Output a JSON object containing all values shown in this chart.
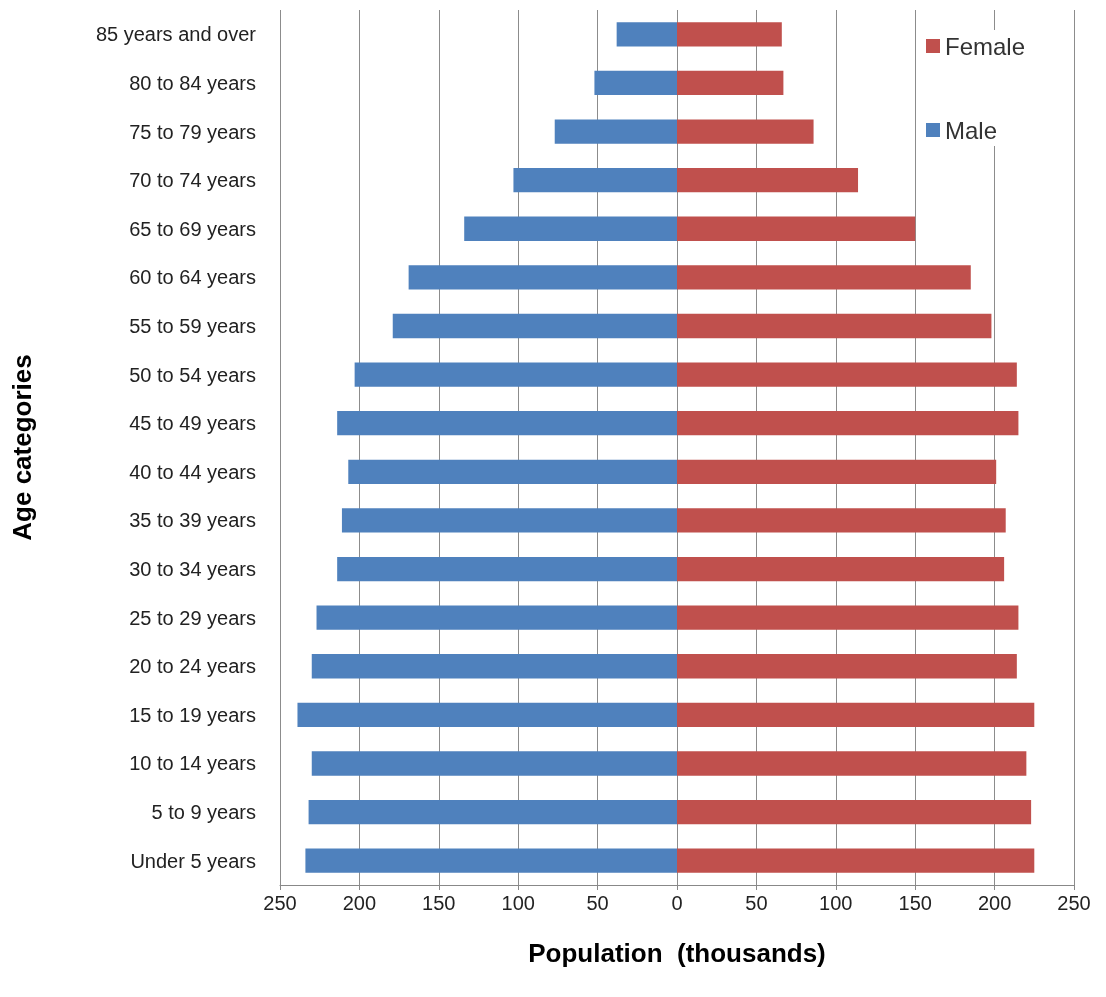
{
  "chart_data": {
    "type": "bar",
    "orientation": "horizontal",
    "stacked": true,
    "xlabel": "Population  (thousands)",
    "ylabel": "Age categories",
    "categories": [
      "85 years and over",
      "80 to 84 years",
      "75 to 79 years",
      "70 to 74 years",
      "65 to 69 years",
      "60 to 64 years",
      "55 to 59 years",
      "50 to 54 years",
      "45 to 49 years",
      "40 to 44 years",
      "35 to 39 years",
      "30 to 34 years",
      "25 to 29 years",
      "20 to 24 years",
      "15 to 19 years",
      "10 to 14 years",
      "5 to 9 years",
      "Under 5 years"
    ],
    "series": [
      {
        "name": "Female",
        "color": "#c0504d",
        "values": [
          66,
          67,
          86,
          114,
          150,
          185,
          198,
          214,
          215,
          201,
          207,
          206,
          215,
          214,
          225,
          220,
          223,
          225
        ]
      },
      {
        "name": "Male",
        "color": "#4f81bd",
        "values": [
          -38,
          -52,
          -77,
          -103,
          -134,
          -169,
          -179,
          -203,
          -214,
          -207,
          -211,
          -214,
          -227,
          -230,
          -239,
          -230,
          -232,
          -234
        ]
      }
    ],
    "xlim": [
      -250,
      250
    ],
    "xticks": [
      {
        "value": -250,
        "label": "250"
      },
      {
        "value": -200,
        "label": "200"
      },
      {
        "value": -150,
        "label": "150"
      },
      {
        "value": -100,
        "label": "100"
      },
      {
        "value": -50,
        "label": "50"
      },
      0,
      50,
      100,
      150,
      200,
      250
    ],
    "grid": "x",
    "legend": "top right"
  }
}
